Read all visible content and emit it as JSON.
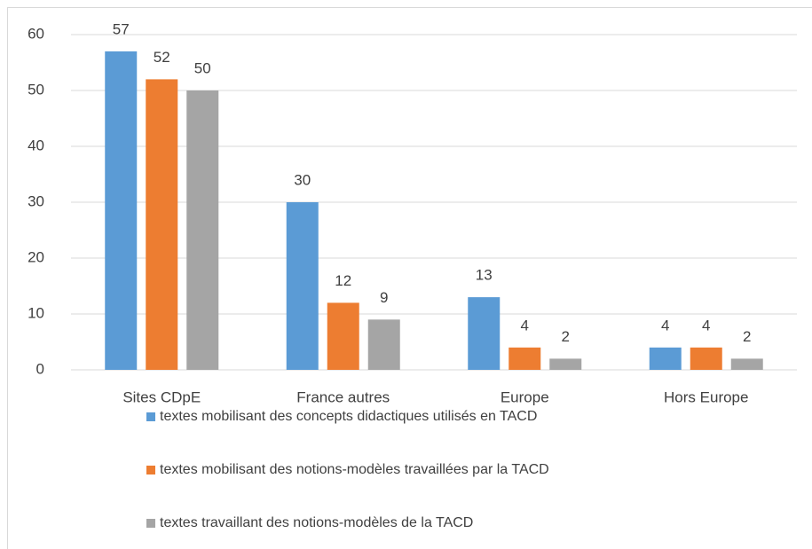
{
  "chart_data": {
    "type": "bar",
    "categories": [
      "Sites CDpE",
      "France autres",
      "Europe",
      "Hors Europe"
    ],
    "series": [
      {
        "name": "textes mobilisant des concepts didactiques utilisés en TACD",
        "color": "#5b9bd5",
        "values": [
          57,
          30,
          13,
          4
        ]
      },
      {
        "name": "textes mobilisant des notions-modèles travaillées par la TACD",
        "color": "#ed7d31",
        "values": [
          52,
          12,
          4,
          4
        ]
      },
      {
        "name": "textes travaillant des notions-modèles de la TACD",
        "color": "#a5a5a5",
        "values": [
          50,
          9,
          2,
          2
        ]
      }
    ],
    "ylim": [
      0,
      60
    ],
    "yticks": [
      0,
      10,
      20,
      30,
      40,
      50,
      60
    ],
    "grid": true,
    "legend": "bottom"
  }
}
